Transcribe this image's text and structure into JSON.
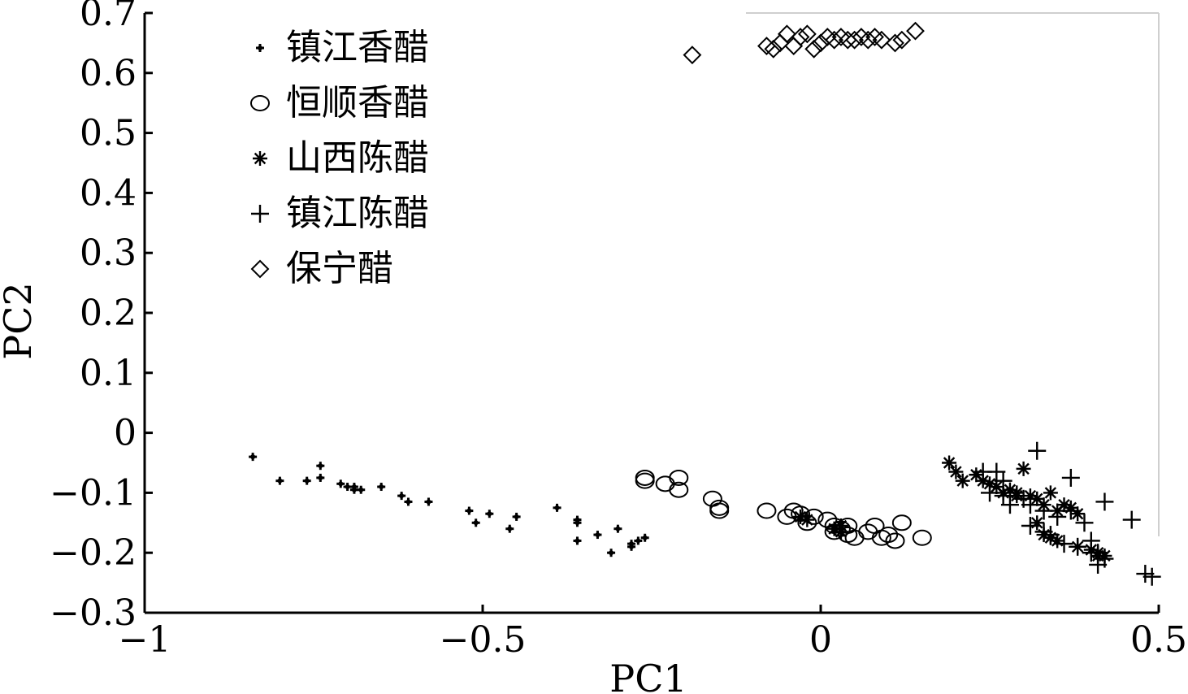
{
  "chart_data": {
    "type": "scatter",
    "xlabel": "PC1",
    "ylabel": "PC2",
    "xlim": [
      -1,
      0.5
    ],
    "ylim": [
      -0.3,
      0.7
    ],
    "xticks": [
      "−1",
      "−0.5",
      "0",
      "0.5"
    ],
    "xtick_values": [
      -1,
      -0.5,
      0,
      0.5
    ],
    "yticks": [
      "0.7",
      "0.6",
      "0.5",
      "0.4",
      "0.3",
      "0.2",
      "0.1",
      "0",
      "−0.1",
      "−0.2",
      "−0.3"
    ],
    "ytick_values": [
      0.7,
      0.6,
      0.5,
      0.4,
      0.3,
      0.2,
      0.1,
      0,
      -0.1,
      -0.2,
      -0.3
    ],
    "grid": false,
    "legend_position": "top-left",
    "series": [
      {
        "name": "镇江香醋",
        "marker": "dot",
        "points": [
          [
            -0.84,
            -0.04
          ],
          [
            -0.8,
            -0.08
          ],
          [
            -0.76,
            -0.08
          ],
          [
            -0.74,
            -0.075
          ],
          [
            -0.74,
            -0.055
          ],
          [
            -0.71,
            -0.085
          ],
          [
            -0.7,
            -0.09
          ],
          [
            -0.69,
            -0.09
          ],
          [
            -0.69,
            -0.095
          ],
          [
            -0.68,
            -0.095
          ],
          [
            -0.65,
            -0.09
          ],
          [
            -0.62,
            -0.105
          ],
          [
            -0.61,
            -0.115
          ],
          [
            -0.58,
            -0.115
          ],
          [
            -0.52,
            -0.13
          ],
          [
            -0.51,
            -0.15
          ],
          [
            -0.49,
            -0.135
          ],
          [
            -0.46,
            -0.16
          ],
          [
            -0.45,
            -0.14
          ],
          [
            -0.39,
            -0.125
          ],
          [
            -0.36,
            -0.145
          ],
          [
            -0.36,
            -0.15
          ],
          [
            -0.36,
            -0.18
          ],
          [
            -0.33,
            -0.17
          ],
          [
            -0.31,
            -0.2
          ],
          [
            -0.3,
            -0.16
          ],
          [
            -0.28,
            -0.19
          ],
          [
            -0.28,
            -0.185
          ],
          [
            -0.27,
            -0.18
          ],
          [
            -0.26,
            -0.175
          ]
        ]
      },
      {
        "name": "恒顺香醋",
        "marker": "circle",
        "points": [
          [
            -0.26,
            -0.075
          ],
          [
            -0.26,
            -0.08
          ],
          [
            -0.23,
            -0.085
          ],
          [
            -0.21,
            -0.075
          ],
          [
            -0.21,
            -0.095
          ],
          [
            -0.16,
            -0.11
          ],
          [
            -0.15,
            -0.125
          ],
          [
            -0.15,
            -0.13
          ],
          [
            -0.08,
            -0.13
          ],
          [
            -0.05,
            -0.14
          ],
          [
            -0.04,
            -0.13
          ],
          [
            -0.03,
            -0.135
          ],
          [
            -0.02,
            -0.15
          ],
          [
            -0.01,
            -0.14
          ],
          [
            0.01,
            -0.145
          ],
          [
            0.02,
            -0.155
          ],
          [
            0.02,
            -0.165
          ],
          [
            0.03,
            -0.16
          ],
          [
            0.04,
            -0.155
          ],
          [
            0.04,
            -0.17
          ],
          [
            0.05,
            -0.175
          ],
          [
            0.07,
            -0.165
          ],
          [
            0.08,
            -0.155
          ],
          [
            0.09,
            -0.175
          ],
          [
            0.1,
            -0.17
          ],
          [
            0.11,
            -0.18
          ],
          [
            0.12,
            -0.15
          ],
          [
            0.15,
            -0.175
          ]
        ]
      },
      {
        "name": "山西陈醋",
        "marker": "asterisk",
        "points": [
          [
            -0.03,
            -0.14
          ],
          [
            -0.02,
            -0.145
          ],
          [
            0.02,
            -0.16
          ],
          [
            0.03,
            -0.165
          ],
          [
            0.03,
            -0.155
          ],
          [
            0.19,
            -0.05
          ],
          [
            0.2,
            -0.065
          ],
          [
            0.21,
            -0.08
          ],
          [
            0.23,
            -0.07
          ],
          [
            0.24,
            -0.08
          ],
          [
            0.25,
            -0.085
          ],
          [
            0.26,
            -0.09
          ],
          [
            0.27,
            -0.1
          ],
          [
            0.28,
            -0.095
          ],
          [
            0.29,
            -0.105
          ],
          [
            0.29,
            -0.1
          ],
          [
            0.3,
            -0.06
          ],
          [
            0.31,
            -0.105
          ],
          [
            0.32,
            -0.11
          ],
          [
            0.33,
            -0.12
          ],
          [
            0.34,
            -0.1
          ],
          [
            0.35,
            -0.13
          ],
          [
            0.36,
            -0.12
          ],
          [
            0.37,
            -0.125
          ],
          [
            0.38,
            -0.135
          ],
          [
            0.32,
            -0.15
          ],
          [
            0.33,
            -0.17
          ],
          [
            0.34,
            -0.175
          ],
          [
            0.35,
            -0.18
          ],
          [
            0.38,
            -0.19
          ],
          [
            0.4,
            -0.195
          ],
          [
            0.41,
            -0.2
          ],
          [
            0.41,
            -0.205
          ],
          [
            0.42,
            -0.205
          ]
        ]
      },
      {
        "name": "镇江陈醋",
        "marker": "plus",
        "points": [
          [
            0.32,
            -0.03
          ],
          [
            0.37,
            -0.075
          ],
          [
            0.24,
            -0.065
          ],
          [
            0.26,
            -0.065
          ],
          [
            0.27,
            -0.08
          ],
          [
            0.25,
            -0.1
          ],
          [
            0.27,
            -0.105
          ],
          [
            0.28,
            -0.12
          ],
          [
            0.3,
            -0.11
          ],
          [
            0.31,
            -0.12
          ],
          [
            0.33,
            -0.13
          ],
          [
            0.35,
            -0.14
          ],
          [
            0.37,
            -0.13
          ],
          [
            0.39,
            -0.15
          ],
          [
            0.42,
            -0.115
          ],
          [
            0.46,
            -0.145
          ],
          [
            0.31,
            -0.155
          ],
          [
            0.33,
            -0.165
          ],
          [
            0.34,
            -0.17
          ],
          [
            0.36,
            -0.185
          ],
          [
            0.38,
            -0.19
          ],
          [
            0.4,
            -0.2
          ],
          [
            0.41,
            -0.2
          ],
          [
            0.42,
            -0.21
          ],
          [
            0.41,
            -0.22
          ],
          [
            0.48,
            -0.235
          ],
          [
            0.49,
            -0.24
          ],
          [
            0.4,
            -0.18
          ]
        ]
      },
      {
        "name": "保宁醋",
        "marker": "diamond",
        "points": [
          [
            -0.19,
            0.63
          ],
          [
            -0.08,
            0.645
          ],
          [
            -0.07,
            0.64
          ],
          [
            -0.06,
            0.65
          ],
          [
            -0.05,
            0.665
          ],
          [
            -0.04,
            0.645
          ],
          [
            -0.03,
            0.66
          ],
          [
            -0.02,
            0.665
          ],
          [
            -0.01,
            0.64
          ],
          [
            0.0,
            0.65
          ],
          [
            0.01,
            0.66
          ],
          [
            0.02,
            0.655
          ],
          [
            0.03,
            0.66
          ],
          [
            0.04,
            0.655
          ],
          [
            0.05,
            0.655
          ],
          [
            0.06,
            0.66
          ],
          [
            0.07,
            0.655
          ],
          [
            0.08,
            0.66
          ],
          [
            0.09,
            0.655
          ],
          [
            0.11,
            0.65
          ],
          [
            0.12,
            0.655
          ],
          [
            0.14,
            0.67
          ]
        ]
      }
    ]
  }
}
